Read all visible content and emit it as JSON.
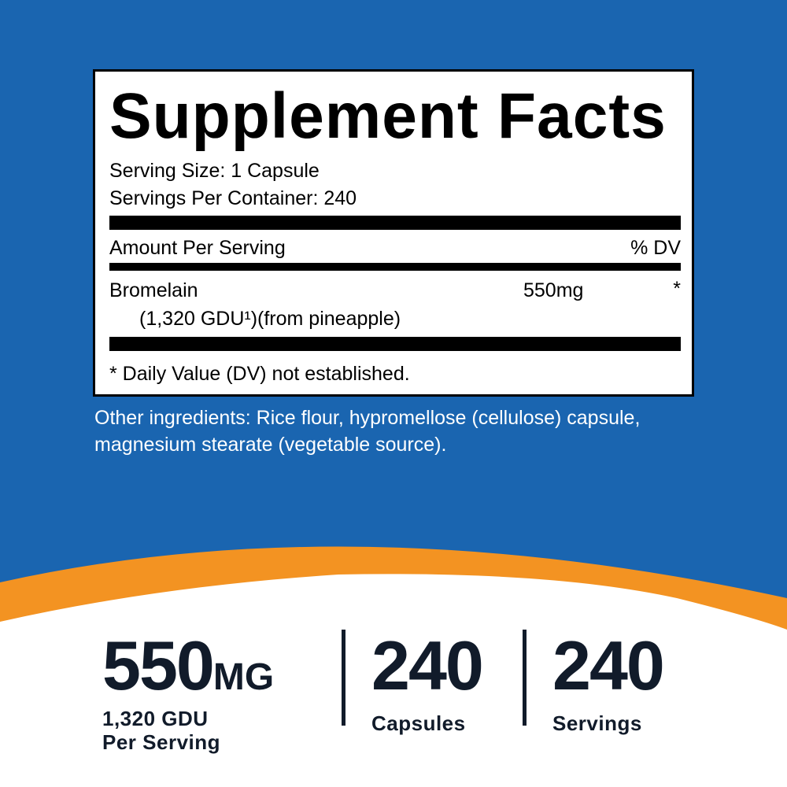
{
  "colors": {
    "background_blue": "#1a65b0",
    "accent_orange": "#f39322",
    "text_dark": "#111b2a"
  },
  "facts": {
    "title": "Supplement Facts",
    "serving_size": "Serving Size: 1 Capsule",
    "servings_per_container": "Servings Per Container: 240",
    "amount_header": "Amount Per Serving",
    "dv_header": "% DV",
    "ingredient": {
      "name": "Bromelain",
      "detail": "(1,320 GDU¹)(from pineapple)",
      "amount": "550mg",
      "dv": "*"
    },
    "footnote": "* Daily Value (DV) not established."
  },
  "other_ingredients": {
    "line1": "Other ingredients: Rice flour, hypromellose (cellulose) capsule,",
    "line2": "magnesium stearate (vegetable source)."
  },
  "stats": [
    {
      "value": "550",
      "unit": "MG",
      "label1": "1,320 GDU",
      "label2": "Per Serving"
    },
    {
      "value": "240",
      "label1": "Capsules"
    },
    {
      "value": "240",
      "label1": "Servings"
    }
  ]
}
